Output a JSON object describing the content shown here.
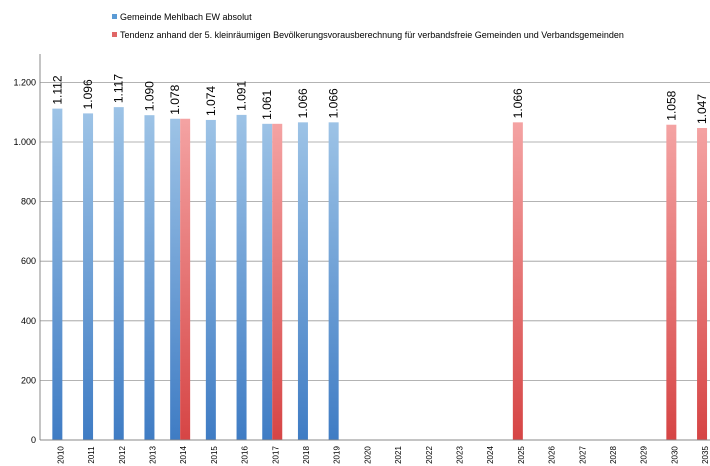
{
  "chart_data": {
    "type": "bar",
    "title": "",
    "xlabel": "",
    "ylabel": "",
    "ylim": [
      0,
      1300
    ],
    "y_ticks": [
      {
        "value": 0,
        "label": "0"
      },
      {
        "value": 200,
        "label": "200"
      },
      {
        "value": 400,
        "label": "400"
      },
      {
        "value": 600,
        "label": "600"
      },
      {
        "value": 800,
        "label": "800"
      },
      {
        "value": 1000,
        "label": "1.000"
      },
      {
        "value": 1200,
        "label": "1.200"
      }
    ],
    "grid": true,
    "legend_position": "top-left",
    "categories": [
      "2010",
      "2011",
      "2012",
      "2013",
      "2014",
      "2015",
      "2016",
      "2017",
      "2018",
      "2019",
      "2020",
      "2021",
      "2022",
      "2023",
      "2024",
      "2025",
      "2026",
      "2027",
      "2028",
      "2029",
      "2030",
      "2035"
    ],
    "series": [
      {
        "name": "Gemeinde Mehlbach EW absolut",
        "color_top": "#9dc3e6",
        "color_bottom": "#3f7cc4",
        "values": [
          1112,
          1096,
          1117,
          1090,
          1078,
          1074,
          1091,
          1061,
          1066,
          1066,
          null,
          null,
          null,
          null,
          null,
          null,
          null,
          null,
          null,
          null,
          null,
          null
        ],
        "labels": [
          "1.112",
          "1.096",
          "1.117",
          "1.090",
          "1.078",
          "1.074",
          "1.091",
          "1.061",
          "1.066",
          "1.066",
          null,
          null,
          null,
          null,
          null,
          null,
          null,
          null,
          null,
          null,
          null,
          null
        ]
      },
      {
        "name": "Tendenz anhand der 5. kleinräumigen Bevölkerungsvorausberechnung für verbandsfreie Gemeinden und Verbandsgemeinden",
        "color_top": "#f4a3a3",
        "color_bottom": "#d64545",
        "values": [
          null,
          null,
          null,
          null,
          1078,
          null,
          null,
          1061,
          null,
          null,
          null,
          null,
          null,
          null,
          null,
          1066,
          null,
          null,
          null,
          null,
          1058,
          1047
        ],
        "labels": [
          null,
          null,
          null,
          null,
          null,
          null,
          null,
          null,
          null,
          null,
          null,
          null,
          null,
          null,
          null,
          "1.066",
          null,
          null,
          null,
          null,
          "1.058",
          "1.047"
        ]
      }
    ]
  }
}
